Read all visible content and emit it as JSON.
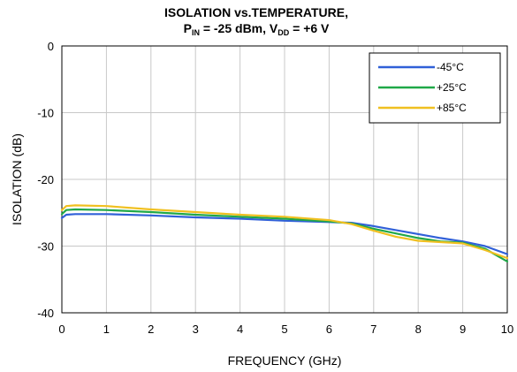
{
  "chart_data": {
    "type": "line",
    "title_line1": "ISOLATION vs.TEMPERATURE,",
    "title_line2": {
      "p": "P",
      "p_sub": "IN",
      "p_value": " = -25 dBm, ",
      "v": "V",
      "v_sub": "DD",
      "v_value": " = +6 V"
    },
    "xlabel": "FREQUENCY (GHz)",
    "ylabel": "ISOLATION (dB)",
    "xlim": [
      0,
      10
    ],
    "ylim": [
      -40,
      0
    ],
    "xticks": [
      "0",
      "1",
      "2",
      "3",
      "4",
      "5",
      "6",
      "7",
      "8",
      "9",
      "10"
    ],
    "yticks": [
      "0",
      "-10",
      "-20",
      "-30",
      "-40"
    ],
    "grid": true,
    "legend_position": "top-right",
    "series": [
      {
        "name": "-45°C",
        "color": "#3060d8",
        "x": [
          0,
          0.1,
          0.3,
          1,
          2,
          3,
          4,
          5,
          6,
          6.5,
          7,
          7.5,
          8,
          8.5,
          9,
          9.5,
          10
        ],
        "y": [
          -25.8,
          -25.3,
          -25.2,
          -25.2,
          -25.4,
          -25.7,
          -25.9,
          -26.2,
          -26.4,
          -26.5,
          -27.0,
          -27.6,
          -28.2,
          -28.8,
          -29.3,
          -30.0,
          -31.2
        ]
      },
      {
        "name": "+25°C",
        "color": "#20a848",
        "x": [
          0,
          0.1,
          0.3,
          1,
          2,
          3,
          4,
          5,
          6,
          6.5,
          7,
          7.5,
          8,
          8.5,
          9,
          9.5,
          10
        ],
        "y": [
          -25.2,
          -24.6,
          -24.5,
          -24.6,
          -24.9,
          -25.3,
          -25.6,
          -25.9,
          -26.3,
          -26.6,
          -27.4,
          -28.1,
          -28.8,
          -29.3,
          -29.5,
          -30.4,
          -32.3
        ]
      },
      {
        "name": "+85°C",
        "color": "#f0c020",
        "x": [
          0,
          0.1,
          0.3,
          1,
          2,
          3,
          4,
          5,
          6,
          6.5,
          7,
          7.5,
          8,
          8.5,
          9,
          9.5,
          10
        ],
        "y": [
          -24.6,
          -24.0,
          -23.9,
          -24.0,
          -24.5,
          -24.9,
          -25.3,
          -25.6,
          -26.1,
          -26.7,
          -27.7,
          -28.6,
          -29.2,
          -29.4,
          -29.6,
          -30.6,
          -31.8
        ]
      }
    ]
  }
}
